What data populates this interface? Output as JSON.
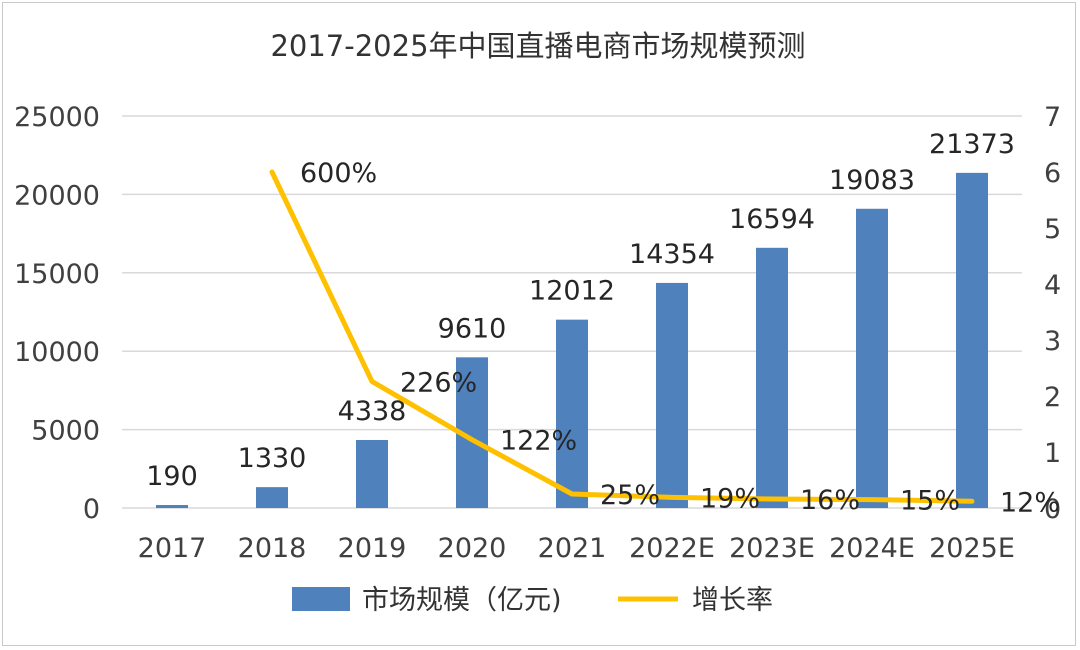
{
  "chart_data": {
    "type": "bar",
    "title": "2017-2025年中国直播电商市场规模预测",
    "categories": [
      "2017",
      "2018",
      "2019",
      "2020",
      "2021",
      "2022E",
      "2023E",
      "2024E",
      "2025E"
    ],
    "series": [
      {
        "name": "市场规模（亿元)",
        "type": "bar",
        "axis": "left",
        "color": "#4f81bd",
        "values": [
          190,
          1330,
          4338,
          9610,
          12012,
          14354,
          16594,
          19083,
          21373
        ],
        "labels": [
          "190",
          "1330",
          "4338",
          "9610",
          "12012",
          "14354",
          "16594",
          "19083",
          "21373"
        ]
      },
      {
        "name": "增长率",
        "type": "line",
        "axis": "right",
        "color": "#ffc000",
        "values": [
          null,
          6.0,
          2.26,
          1.22,
          0.25,
          0.19,
          0.16,
          0.15,
          0.12
        ],
        "labels": [
          "",
          "600%",
          "226%",
          "122%",
          "25%",
          "19%",
          "16%",
          "15%",
          "12%"
        ]
      }
    ],
    "y_left": {
      "ticks": [
        "0",
        "5000",
        "10000",
        "15000",
        "20000",
        "25000"
      ],
      "range": [
        0,
        25000
      ]
    },
    "y_right": {
      "ticks": [
        "0",
        "1",
        "2",
        "3",
        "4",
        "5",
        "6",
        "7"
      ],
      "range": [
        0,
        7
      ]
    },
    "grid": true,
    "legend_position": "bottom"
  }
}
